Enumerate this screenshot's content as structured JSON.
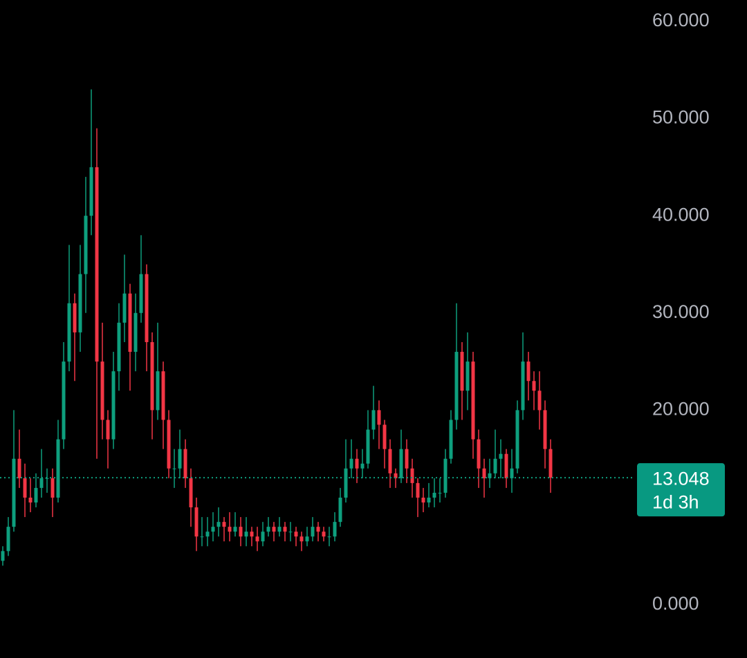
{
  "chart_data": {
    "type": "candlestick",
    "up_color": "#0e9f7e",
    "down_color": "#f23645",
    "ylim": [
      -5.5,
      62.2
    ],
    "yticks": [
      {
        "value": 0,
        "label": "0.000"
      },
      {
        "value": 20,
        "label": "20.000"
      },
      {
        "value": 30,
        "label": "30.000"
      },
      {
        "value": 40,
        "label": "40.000"
      },
      {
        "value": 50,
        "label": "50.000"
      },
      {
        "value": 60,
        "label": "60.000"
      }
    ],
    "last_price": {
      "value": 13.048,
      "label": "13.048"
    },
    "countdown": "1d 3h",
    "candles": [
      [
        4.5,
        6,
        4,
        5.5
      ],
      [
        5.5,
        9,
        5,
        8
      ],
      [
        8,
        20,
        7.5,
        15
      ],
      [
        15,
        18,
        12,
        13
      ],
      [
        13,
        14.5,
        9,
        11
      ],
      [
        11,
        13,
        9.5,
        10.5
      ],
      [
        10.5,
        13.5,
        10,
        12
      ],
      [
        12,
        16,
        11,
        13
      ],
      [
        13,
        14,
        11.5,
        13
      ],
      [
        13,
        14,
        9,
        11
      ],
      [
        11,
        19,
        10.5,
        17
      ],
      [
        17,
        27,
        16,
        25
      ],
      [
        25,
        37,
        24,
        31
      ],
      [
        31,
        32,
        23,
        28
      ],
      [
        28,
        37,
        26,
        34
      ],
      [
        34,
        44,
        30,
        40
      ],
      [
        40,
        53,
        38,
        45
      ],
      [
        45,
        49,
        15,
        25
      ],
      [
        25,
        29,
        17,
        19
      ],
      [
        19,
        20,
        14,
        17
      ],
      [
        17,
        26,
        16,
        24
      ],
      [
        24,
        31,
        22,
        29
      ],
      [
        29,
        36,
        27,
        32
      ],
      [
        32,
        33,
        22,
        26
      ],
      [
        26,
        32,
        24,
        30
      ],
      [
        30,
        38,
        29,
        34
      ],
      [
        34,
        35,
        24,
        27
      ],
      [
        27,
        28,
        17,
        20
      ],
      [
        20,
        29,
        19,
        24
      ],
      [
        24,
        25,
        16,
        19
      ],
      [
        19,
        20,
        13,
        14
      ],
      [
        14,
        16,
        12,
        14
      ],
      [
        14,
        18,
        13,
        16
      ],
      [
        16,
        17,
        12,
        13
      ],
      [
        13,
        14,
        8,
        10
      ],
      [
        10,
        11,
        5.5,
        7
      ],
      [
        7,
        9,
        6,
        7
      ],
      [
        7,
        9,
        6,
        7.5
      ],
      [
        7.5,
        9.5,
        6.5,
        8
      ],
      [
        8,
        10,
        7,
        8.5
      ],
      [
        8.5,
        9,
        6.5,
        8
      ],
      [
        8,
        9.5,
        6.5,
        7.5
      ],
      [
        7.5,
        9.5,
        7,
        8
      ],
      [
        8,
        9,
        6,
        7
      ],
      [
        7,
        9,
        6,
        7.5
      ],
      [
        7.5,
        8,
        6,
        7
      ],
      [
        7,
        8,
        5.5,
        6.5
      ],
      [
        6.5,
        8.5,
        6,
        7.5
      ],
      [
        7.5,
        9,
        7,
        8
      ],
      [
        8,
        8.5,
        6.5,
        7.5
      ],
      [
        7.5,
        9,
        7,
        8
      ],
      [
        8,
        8.5,
        6.5,
        7.5
      ],
      [
        7.5,
        8.5,
        6.5,
        7.5
      ],
      [
        7.5,
        8,
        6,
        7
      ],
      [
        7,
        7.5,
        5.5,
        6.5
      ],
      [
        6.5,
        8,
        6,
        7
      ],
      [
        7,
        9,
        6.5,
        8
      ],
      [
        8,
        8.5,
        6.5,
        7.5
      ],
      [
        7.5,
        8,
        6.5,
        7
      ],
      [
        7,
        8,
        6,
        7
      ],
      [
        7,
        9.5,
        6.5,
        8.5
      ],
      [
        8.5,
        12,
        8,
        11
      ],
      [
        11,
        17,
        10.5,
        14
      ],
      [
        14,
        17,
        13,
        15
      ],
      [
        15,
        16,
        12.5,
        14
      ],
      [
        14,
        16,
        13,
        14.5
      ],
      [
        14.5,
        20,
        14,
        18
      ],
      [
        18,
        22.5,
        17,
        20
      ],
      [
        20,
        21,
        16,
        18.5
      ],
      [
        18.5,
        19,
        14,
        16
      ],
      [
        16,
        17,
        12,
        13.5
      ],
      [
        13.5,
        14,
        12,
        13
      ],
      [
        13,
        18,
        12.5,
        16
      ],
      [
        16,
        17,
        12.5,
        14
      ],
      [
        14,
        15,
        11,
        12.5
      ],
      [
        12.5,
        13,
        9,
        11
      ],
      [
        11,
        12,
        9.5,
        10.5
      ],
      [
        10.5,
        12.5,
        10,
        11
      ],
      [
        11,
        13,
        10,
        11.5
      ],
      [
        11.5,
        13,
        10.5,
        11.5
      ],
      [
        11.5,
        16,
        11,
        15
      ],
      [
        15,
        20,
        14.5,
        19
      ],
      [
        19,
        31,
        18,
        26
      ],
      [
        26,
        27,
        19,
        22
      ],
      [
        22,
        28,
        20,
        25
      ],
      [
        25,
        26,
        15,
        17
      ],
      [
        17,
        18,
        12,
        14
      ],
      [
        14,
        15,
        11,
        13
      ],
      [
        13,
        15,
        12,
        13.5
      ],
      [
        13.5,
        18,
        13,
        15
      ],
      [
        15,
        17,
        13,
        15.5
      ],
      [
        15.5,
        16,
        12,
        13
      ],
      [
        13,
        16,
        11.5,
        14
      ],
      [
        14,
        21,
        13.5,
        20
      ],
      [
        20,
        28,
        19,
        25
      ],
      [
        25,
        26,
        21,
        23
      ],
      [
        23,
        24,
        20,
        22
      ],
      [
        22,
        24,
        18,
        20
      ],
      [
        20,
        21,
        14,
        16
      ],
      [
        16,
        17,
        11.5,
        13.048
      ]
    ]
  }
}
